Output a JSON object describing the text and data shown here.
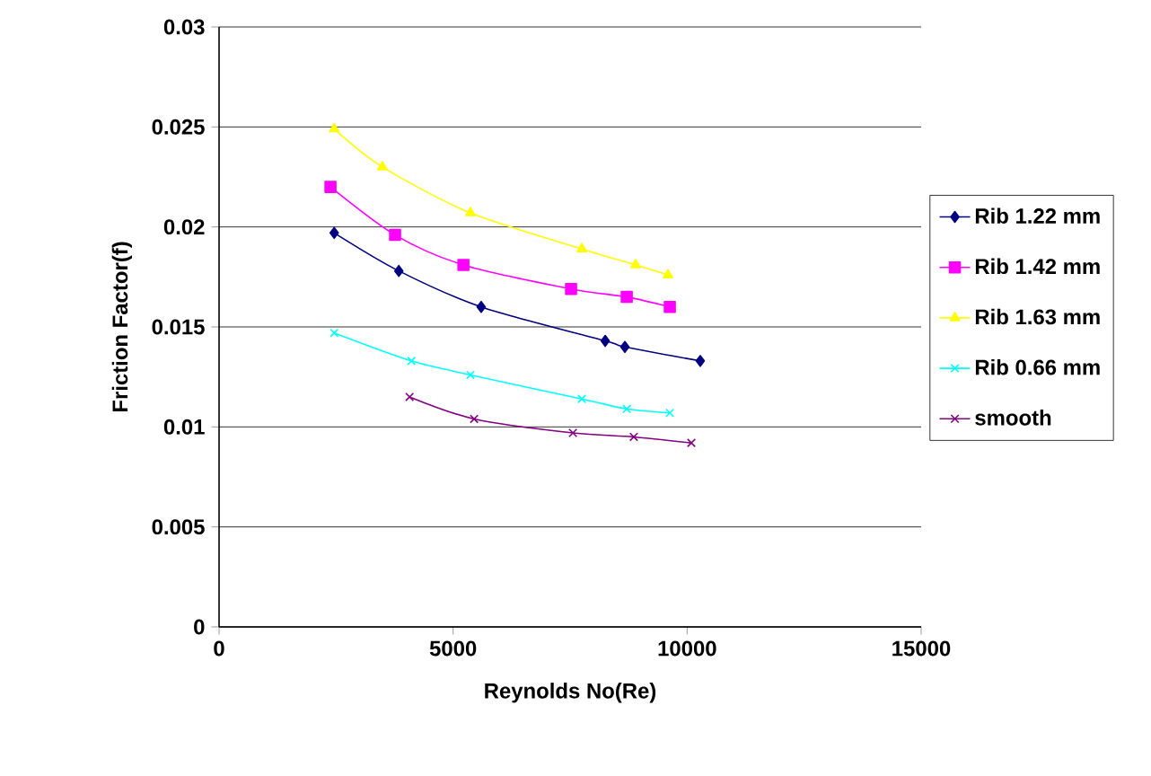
{
  "chart_data": {
    "type": "line",
    "xlabel": "Reynolds No(Re)",
    "ylabel": "Friction Factor(f)",
    "xlim": [
      0,
      15000
    ],
    "xticks": [
      0,
      5000,
      10000,
      15000
    ],
    "ylim": [
      0,
      0.03
    ],
    "yticks": [
      0,
      0.005,
      0.01,
      0.015,
      0.02,
      0.025,
      0.03
    ],
    "grid": "y",
    "legend": "right",
    "series": [
      {
        "name": "Rib 1.22 mm",
        "color": "#000080",
        "marker": "diamond",
        "x": [
          2460,
          3840,
          5600,
          8250,
          8670,
          10280
        ],
        "values": [
          0.0197,
          0.0178,
          0.016,
          0.0143,
          0.014,
          0.0133
        ]
      },
      {
        "name": "Rib 1.42 mm",
        "color": "#ff00ff",
        "marker": "square",
        "x": [
          2380,
          3760,
          5220,
          7520,
          8710,
          9630
        ],
        "values": [
          0.022,
          0.0196,
          0.0181,
          0.0169,
          0.0165,
          0.016
        ]
      },
      {
        "name": "Rib 1.63 mm",
        "color": "#ffff00",
        "marker": "triangle",
        "x": [
          2460,
          3490,
          5370,
          7750,
          8900,
          9590
        ],
        "values": [
          0.0249,
          0.023,
          0.0207,
          0.0189,
          0.0181,
          0.0176
        ]
      },
      {
        "name": "Rib 0.66 mm",
        "color": "#00ffff",
        "marker": "cross",
        "x": [
          2460,
          4110,
          5370,
          7750,
          8710,
          9630
        ],
        "values": [
          0.0147,
          0.0133,
          0.0126,
          0.0114,
          0.0109,
          0.0107
        ]
      },
      {
        "name": "smooth",
        "color": "#800080",
        "marker": "cross",
        "x": [
          4070,
          5450,
          7560,
          8860,
          10090
        ],
        "values": [
          0.0115,
          0.0104,
          0.0097,
          0.0095,
          0.0092
        ]
      }
    ]
  }
}
